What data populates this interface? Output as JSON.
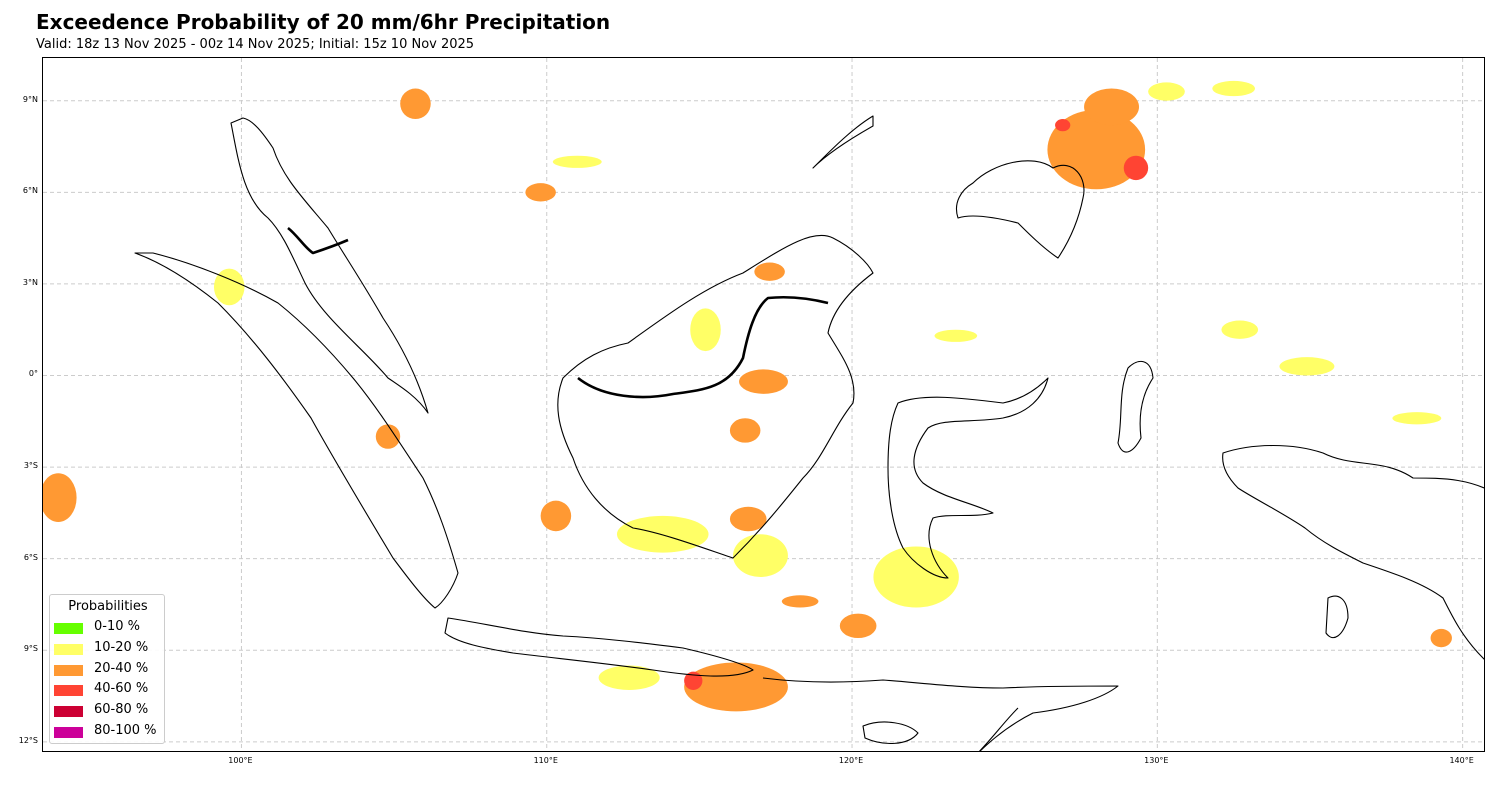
{
  "title": "Exceedence Probability of 20 mm/6hr Precipitation",
  "subtitle": "Valid: 18z 13 Nov 2025 - 00z 14 Nov 2025; Initial: 15z 10 Nov 2025",
  "map": {
    "projection": "PlateCarree",
    "extent_lon": [
      93.5,
      140.7
    ],
    "extent_lat": [
      -12.3,
      10.4
    ],
    "lat_ticks": [
      {
        "value": 9,
        "label": "9°N"
      },
      {
        "value": 6,
        "label": "6°N"
      },
      {
        "value": 3,
        "label": "3°N"
      },
      {
        "value": 0,
        "label": "0°"
      },
      {
        "value": -3,
        "label": "3°S"
      },
      {
        "value": -6,
        "label": "6°S"
      },
      {
        "value": -9,
        "label": "9°S"
      },
      {
        "value": -12,
        "label": "12°S"
      }
    ],
    "lon_ticks": [
      {
        "value": 100,
        "label": "100°E"
      },
      {
        "value": 110,
        "label": "110°E"
      },
      {
        "value": 120,
        "label": "120°E"
      },
      {
        "value": 130,
        "label": "130°E"
      },
      {
        "value": 140,
        "label": "140°E"
      }
    ],
    "gridlines": true,
    "gridline_color": "#cccccc",
    "coastline_color": "#000000",
    "land_color": "#ffffff"
  },
  "legend": {
    "title": "Probabilities",
    "placement": "lower-left",
    "items": [
      {
        "label": "0-10 %",
        "color": "#66ff00"
      },
      {
        "label": "10-20 %",
        "color": "#ffff66"
      },
      {
        "label": "20-40 %",
        "color": "#ff9933"
      },
      {
        "label": "40-60 %",
        "color": "#ff4433"
      },
      {
        "label": "60-80 %",
        "color": "#cc0033"
      },
      {
        "label": "80-100 %",
        "color": "#cc0099"
      }
    ]
  },
  "precip_areas": [
    {
      "lon": 128.0,
      "lat": 7.4,
      "rlon": 1.6,
      "rlat": 1.3,
      "level": "20-40 %"
    },
    {
      "lon": 128.5,
      "lat": 8.8,
      "rlon": 0.9,
      "rlat": 0.6,
      "level": "20-40 %"
    },
    {
      "lon": 129.3,
      "lat": 6.8,
      "rlon": 0.4,
      "rlat": 0.4,
      "level": "40-60 %"
    },
    {
      "lon": 126.9,
      "lat": 8.2,
      "rlon": 0.25,
      "rlat": 0.2,
      "level": "40-60 %"
    },
    {
      "lon": 130.3,
      "lat": 9.3,
      "rlon": 0.6,
      "rlat": 0.3,
      "level": "10-20 %"
    },
    {
      "lon": 132.5,
      "lat": 9.4,
      "rlon": 0.7,
      "rlat": 0.25,
      "level": "10-20 %"
    },
    {
      "lon": 99.6,
      "lat": 2.9,
      "rlon": 0.5,
      "rlat": 0.6,
      "level": "10-20 %"
    },
    {
      "lon": 115.2,
      "lat": 1.5,
      "rlon": 0.5,
      "rlat": 0.7,
      "level": "10-20 %"
    },
    {
      "lon": 117.1,
      "lat": -0.2,
      "rlon": 0.8,
      "rlat": 0.4,
      "level": "20-40 %"
    },
    {
      "lon": 117.3,
      "lat": 3.4,
      "rlon": 0.5,
      "rlat": 0.3,
      "level": "20-40 %"
    },
    {
      "lon": 116.5,
      "lat": -1.8,
      "rlon": 0.5,
      "rlat": 0.4,
      "level": "20-40 %"
    },
    {
      "lon": 104.8,
      "lat": -2.0,
      "rlon": 0.4,
      "rlat": 0.4,
      "level": "20-40 %"
    },
    {
      "lon": 94.0,
      "lat": -4.0,
      "rlon": 0.6,
      "rlat": 0.8,
      "level": "20-40 %"
    },
    {
      "lon": 113.8,
      "lat": -5.2,
      "rlon": 1.5,
      "rlat": 0.6,
      "level": "10-20 %"
    },
    {
      "lon": 117.0,
      "lat": -5.9,
      "rlon": 0.9,
      "rlat": 0.7,
      "level": "10-20 %"
    },
    {
      "lon": 110.3,
      "lat": -4.6,
      "rlon": 0.5,
      "rlat": 0.5,
      "level": "20-40 %"
    },
    {
      "lon": 116.6,
      "lat": -4.7,
      "rlon": 0.6,
      "rlat": 0.4,
      "level": "20-40 %"
    },
    {
      "lon": 122.1,
      "lat": -6.6,
      "rlon": 1.4,
      "rlat": 1.0,
      "level": "10-20 %"
    },
    {
      "lon": 116.2,
      "lat": -10.2,
      "rlon": 1.7,
      "rlat": 0.8,
      "level": "20-40 %"
    },
    {
      "lon": 114.8,
      "lat": -10.0,
      "rlon": 0.3,
      "rlat": 0.3,
      "level": "40-60 %"
    },
    {
      "lon": 112.7,
      "lat": -9.9,
      "rlon": 1.0,
      "rlat": 0.4,
      "level": "10-20 %"
    },
    {
      "lon": 120.2,
      "lat": -8.2,
      "rlon": 0.6,
      "rlat": 0.4,
      "level": "20-40 %"
    },
    {
      "lon": 118.3,
      "lat": -7.4,
      "rlon": 0.6,
      "rlat": 0.2,
      "level": "20-40 %"
    },
    {
      "lon": 134.9,
      "lat": 0.3,
      "rlon": 0.9,
      "rlat": 0.3,
      "level": "10-20 %"
    },
    {
      "lon": 132.7,
      "lat": 1.5,
      "rlon": 0.6,
      "rlat": 0.3,
      "level": "10-20 %"
    },
    {
      "lon": 139.3,
      "lat": -8.6,
      "rlon": 0.35,
      "rlat": 0.3,
      "level": "20-40 %"
    },
    {
      "lon": 109.8,
      "lat": 6.0,
      "rlon": 0.5,
      "rlat": 0.3,
      "level": "20-40 %"
    },
    {
      "lon": 105.7,
      "lat": 8.9,
      "rlon": 0.5,
      "rlat": 0.5,
      "level": "20-40 %"
    },
    {
      "lon": 111.0,
      "lat": 7.0,
      "rlon": 0.8,
      "rlat": 0.2,
      "level": "10-20 %"
    },
    {
      "lon": 123.4,
      "lat": 1.3,
      "rlon": 0.7,
      "rlat": 0.2,
      "level": "10-20 %"
    },
    {
      "lon": 138.5,
      "lat": -1.4,
      "rlon": 0.8,
      "rlat": 0.2,
      "level": "10-20 %"
    }
  ]
}
